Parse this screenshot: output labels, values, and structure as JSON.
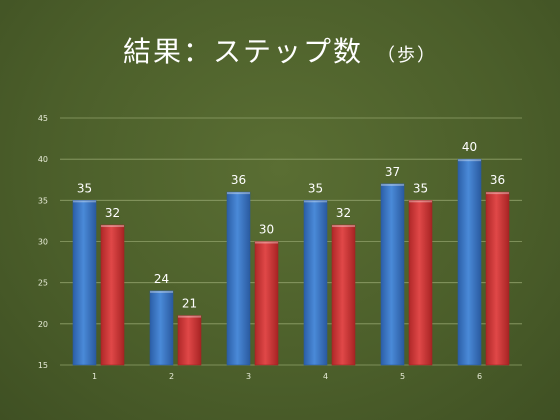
{
  "slide": {
    "title": "結果：ステップ数",
    "title_unit": "（歩）"
  },
  "colors": {
    "background": "#4b5e2a",
    "series_blue": "#3d78c8",
    "series_red": "#d23a3a",
    "gridline": "#8fa06a",
    "tick_label": "#e8ecd8",
    "data_label": "#ffffff"
  },
  "chart_data": {
    "type": "bar",
    "categories": [
      "1",
      "2",
      "3",
      "4",
      "5",
      "6"
    ],
    "series": [
      {
        "values": [
          35,
          24,
          36,
          35,
          37,
          40
        ]
      },
      {
        "values": [
          32,
          21,
          30,
          32,
          35,
          36
        ]
      }
    ],
    "ylim": [
      15,
      45
    ],
    "yticks": [
      15,
      20,
      25,
      30,
      35,
      40,
      45
    ],
    "grid": true,
    "legend": "none",
    "data_labels": true
  }
}
